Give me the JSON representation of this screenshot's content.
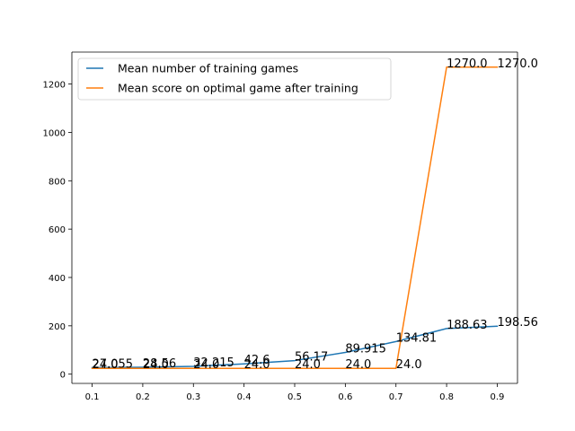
{
  "chart_data": {
    "type": "line",
    "x": [
      0.1,
      0.2,
      0.3,
      0.4,
      0.5,
      0.6,
      0.7,
      0.8,
      0.9
    ],
    "series": [
      {
        "name": "Mean number of training games",
        "values": [
          27.055,
          28.56,
          32.215,
          42.6,
          56.17,
          89.915,
          134.81,
          188.63,
          198.56
        ],
        "labels": [
          "27.055",
          "28.56",
          "32.215",
          "42.6",
          "56.17",
          "89.915",
          "134.81",
          "188.63",
          "198.56"
        ],
        "color": "#1f77b4"
      },
      {
        "name": "Mean score on optimal game after training",
        "values": [
          24.0,
          24.0,
          24.0,
          24.0,
          24.0,
          24.0,
          24.0,
          1270.0,
          1270.0
        ],
        "labels": [
          "24.0",
          "24.0",
          "24.0",
          "24.0",
          "24.0",
          "24.0",
          "24.0",
          "1270.0",
          "1270.0"
        ],
        "color": "#ff7f0e"
      }
    ],
    "x_ticks": [
      "0.1",
      "0.2",
      "0.3",
      "0.4",
      "0.5",
      "0.6",
      "0.7",
      "0.8",
      "0.9"
    ],
    "y_ticks": [
      "0",
      "200",
      "400",
      "600",
      "800",
      "1000",
      "1200"
    ],
    "y_tick_values": [
      0,
      200,
      400,
      600,
      800,
      1000,
      1200
    ],
    "xlim": [
      0.06,
      0.94
    ],
    "ylim": [
      -38.3,
      1332.3
    ],
    "title": "",
    "xlabel": "",
    "ylabel": "",
    "grid": false,
    "legend": "upper-left"
  }
}
